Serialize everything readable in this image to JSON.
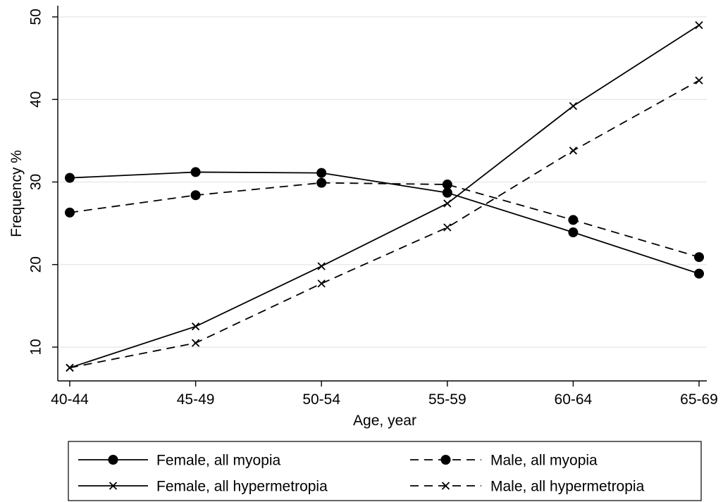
{
  "chart_data": {
    "type": "line",
    "xlabel": "Age, year",
    "ylabel": "Frequency %",
    "categories": [
      "40-44",
      "45-49",
      "50-54",
      "55-59",
      "60-64",
      "65-69"
    ],
    "yticks": [
      10,
      20,
      30,
      40,
      50
    ],
    "ylim": [
      6,
      51
    ],
    "grid": true,
    "legend_position": "bottom",
    "series": [
      {
        "name": "Female, all myopia",
        "values": [
          30.5,
          31.2,
          31.1,
          28.7,
          23.9,
          18.9
        ],
        "marker": "circle",
        "dash": "solid"
      },
      {
        "name": "Male, all myopia",
        "values": [
          26.3,
          28.4,
          29.9,
          29.7,
          25.4,
          20.9
        ],
        "marker": "circle",
        "dash": "dashed"
      },
      {
        "name": "Female, all hypermetropia",
        "values": [
          7.5,
          12.5,
          19.8,
          27.4,
          39.2,
          49.0
        ],
        "marker": "x",
        "dash": "solid"
      },
      {
        "name": "Male, all hypermetropia",
        "values": [
          7.5,
          10.5,
          17.7,
          24.5,
          33.8,
          42.3
        ],
        "marker": "x",
        "dash": "dashed"
      }
    ]
  }
}
